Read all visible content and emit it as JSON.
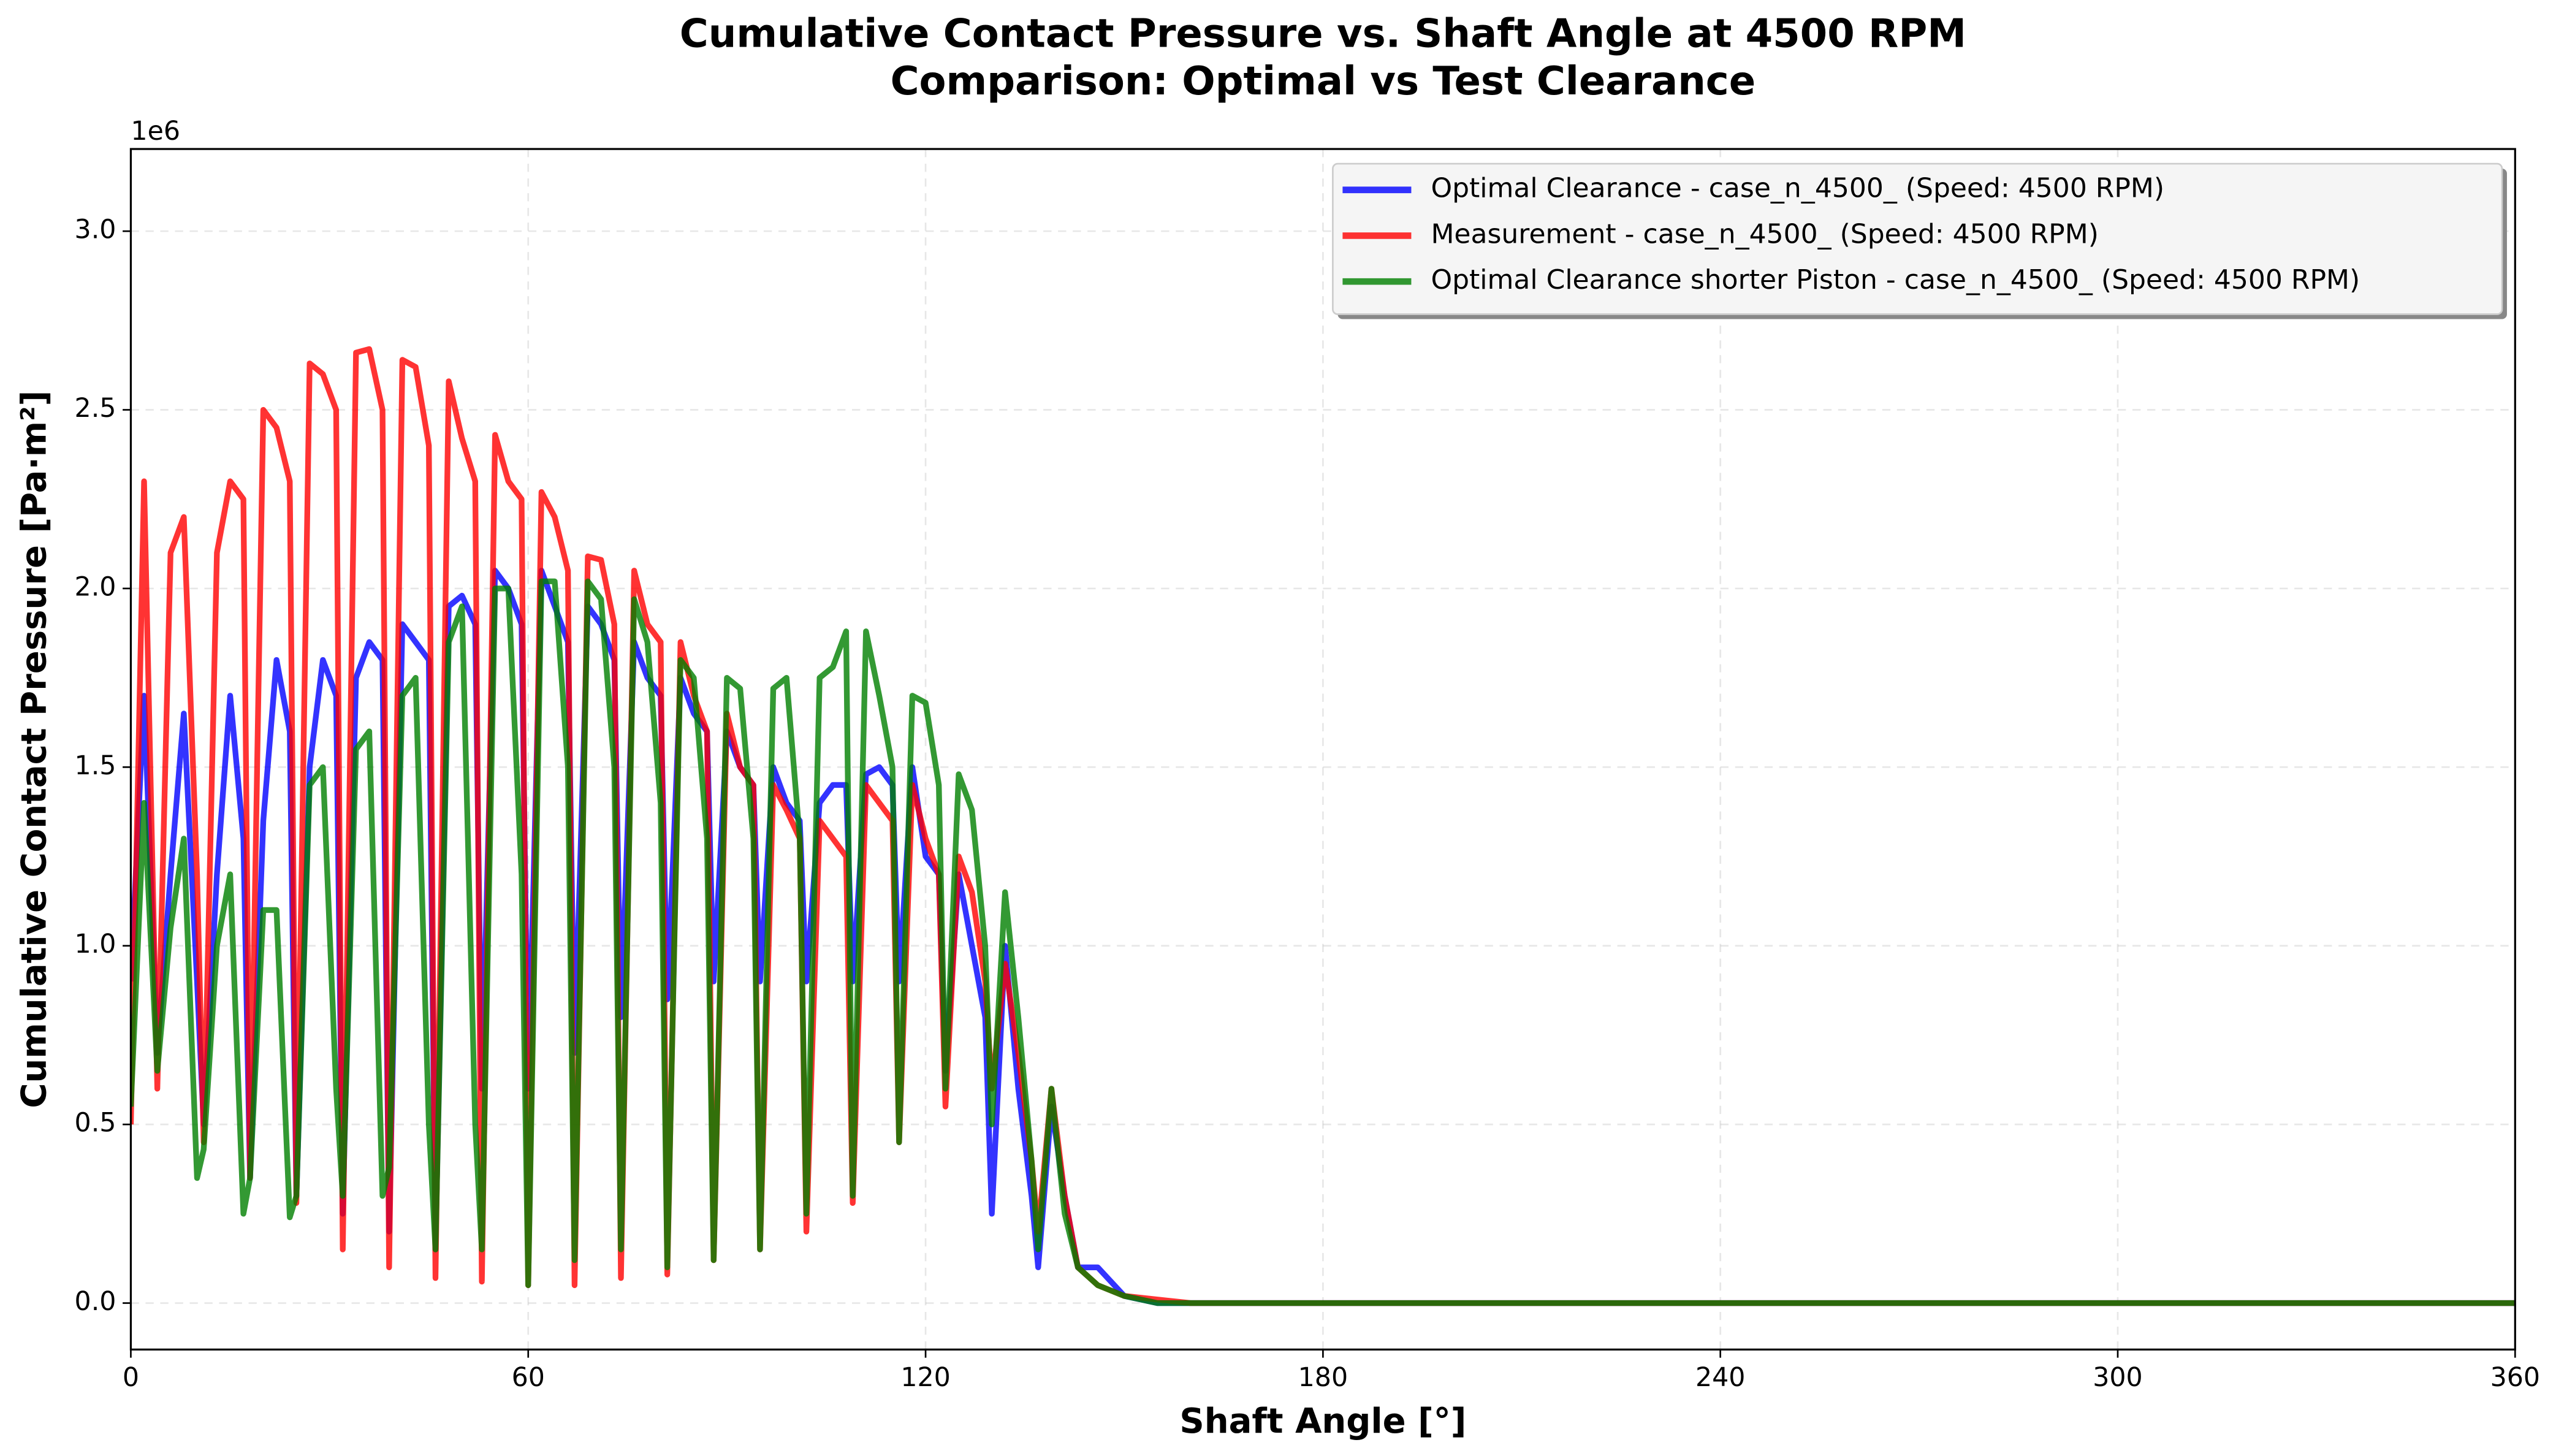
{
  "chart_data": {
    "type": "line",
    "title": "Cumulative Contact Pressure vs. Shaft Angle at 4500 RPM",
    "subtitle": "Comparison: Optimal vs Test Clearance",
    "x_label": "Shaft Angle [°]",
    "y_label": "Cumulative Contact Pressure [Pa·m²]",
    "y_offset_label": "1e6",
    "xlim": [
      0,
      360
    ],
    "xticks": [
      0,
      60,
      120,
      180,
      240,
      300,
      360
    ],
    "ylim": [
      -0.13,
      3.23
    ],
    "yticks": [
      {
        "value": 0,
        "label": "0.0"
      },
      0.5,
      {
        "value": 1,
        "label": "1.0"
      },
      1.5,
      {
        "value": 2,
        "label": "2.0"
      },
      2.5,
      {
        "value": 3,
        "label": "3.0"
      }
    ],
    "grid": true,
    "legend": "upper right",
    "x": [
      0,
      2,
      4,
      6,
      8,
      10,
      11,
      13,
      15,
      17,
      18,
      20,
      22,
      24,
      25,
      27,
      29,
      31,
      32,
      34,
      36,
      38,
      39,
      41,
      43,
      45,
      46,
      48,
      50,
      52,
      53,
      55,
      57,
      59,
      60,
      62,
      64,
      66,
      67,
      69,
      71,
      73,
      74,
      76,
      78,
      80,
      81,
      83,
      85,
      87,
      88,
      90,
      92,
      94,
      95,
      97,
      99,
      101,
      102,
      104,
      106,
      108,
      109,
      111,
      113,
      115,
      116,
      118,
      120,
      122,
      123,
      125,
      127,
      129,
      130,
      132,
      134,
      136,
      137,
      139,
      141,
      143,
      146,
      150,
      155,
      160,
      360
    ],
    "series": [
      {
        "name": "Optimal Clearance - case_n_4500_ (Speed: 4500 RPM)",
        "color": "#0000ff",
        "values": [
          0.9,
          1.7,
          0.7,
          1.2,
          1.65,
          0.9,
          0.5,
          1.2,
          1.7,
          1.3,
          0.35,
          1.35,
          1.8,
          1.6,
          0.3,
          1.5,
          1.8,
          1.7,
          0.25,
          1.75,
          1.85,
          1.8,
          0.2,
          1.9,
          1.85,
          1.8,
          0.15,
          1.95,
          1.98,
          1.9,
          0.6,
          2.05,
          2.0,
          1.9,
          0.6,
          2.05,
          1.95,
          1.85,
          0.7,
          1.95,
          1.9,
          1.8,
          0.8,
          1.85,
          1.75,
          1.7,
          0.85,
          1.75,
          1.65,
          1.6,
          0.9,
          1.6,
          1.5,
          1.45,
          0.9,
          1.5,
          1.4,
          1.35,
          0.9,
          1.4,
          1.45,
          1.45,
          0.9,
          1.48,
          1.5,
          1.45,
          0.9,
          1.5,
          1.25,
          1.2,
          0.65,
          1.2,
          1.0,
          0.8,
          0.25,
          1.0,
          0.6,
          0.3,
          0.1,
          0.55,
          0.3,
          0.1,
          0.1,
          0.02,
          0,
          0,
          0
        ]
      },
      {
        "name": "Measurement - case_n_4500_ (Speed: 4500 RPM)",
        "color": "#ff0000",
        "values": [
          0.5,
          2.3,
          0.6,
          2.1,
          2.2,
          1.2,
          0.45,
          2.1,
          2.3,
          2.25,
          0.35,
          2.5,
          2.45,
          2.3,
          0.28,
          2.63,
          2.6,
          2.5,
          0.15,
          2.66,
          2.67,
          2.5,
          0.1,
          2.64,
          2.62,
          2.4,
          0.07,
          2.58,
          2.42,
          2.3,
          0.06,
          2.43,
          2.3,
          2.25,
          0.05,
          2.27,
          2.2,
          2.05,
          0.05,
          2.09,
          2.08,
          1.9,
          0.07,
          2.05,
          1.9,
          1.85,
          0.08,
          1.85,
          1.7,
          1.6,
          0.12,
          1.65,
          1.5,
          1.45,
          0.15,
          1.45,
          1.38,
          1.3,
          0.2,
          1.35,
          1.3,
          1.25,
          0.28,
          1.45,
          1.4,
          1.35,
          0.45,
          1.45,
          1.3,
          1.2,
          0.55,
          1.25,
          1.15,
          0.9,
          0.6,
          0.95,
          0.7,
          0.4,
          0.2,
          0.6,
          0.3,
          0.1,
          0.05,
          0.02,
          0.01,
          0,
          0
        ]
      },
      {
        "name": "Optimal Clearance shorter Piston - case_n_4500_ (Speed: 4500 RPM)",
        "color": "#008000",
        "values": [
          0.55,
          1.4,
          0.65,
          1.05,
          1.3,
          0.35,
          0.43,
          1.0,
          1.2,
          0.25,
          0.35,
          1.1,
          1.1,
          0.24,
          0.3,
          1.45,
          1.5,
          0.6,
          0.3,
          1.55,
          1.6,
          0.3,
          0.38,
          1.7,
          1.75,
          0.5,
          0.15,
          1.85,
          1.95,
          0.5,
          0.15,
          2.0,
          2.0,
          1.2,
          0.05,
          2.02,
          2.02,
          1.5,
          0.12,
          2.02,
          1.97,
          1.5,
          0.15,
          1.97,
          1.85,
          1.4,
          0.1,
          1.8,
          1.75,
          1.3,
          0.12,
          1.75,
          1.72,
          1.3,
          0.15,
          1.72,
          1.75,
          1.3,
          0.25,
          1.75,
          1.78,
          1.88,
          0.3,
          1.88,
          1.7,
          1.5,
          0.45,
          1.7,
          1.68,
          1.45,
          0.6,
          1.48,
          1.38,
          1.0,
          0.5,
          1.15,
          0.8,
          0.4,
          0.15,
          0.6,
          0.25,
          0.1,
          0.05,
          0.02,
          0,
          0,
          0
        ]
      }
    ]
  }
}
